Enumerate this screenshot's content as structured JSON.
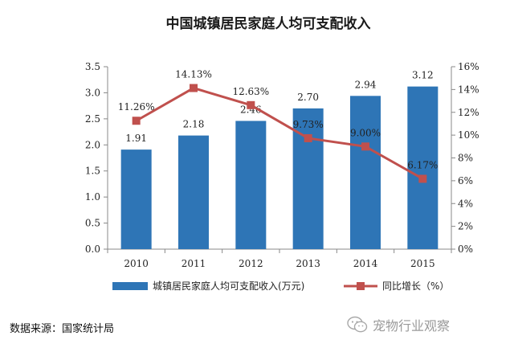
{
  "chart_data": {
    "type": "bar",
    "title": "中国城镇居民家庭人均可支配收入",
    "categories": [
      "2010",
      "2011",
      "2012",
      "2013",
      "2014",
      "2015"
    ],
    "series": [
      {
        "name": "城镇居民家庭人均可支配收入(万元)",
        "type": "bar",
        "axis": "left",
        "values": [
          1.91,
          2.18,
          2.46,
          2.7,
          2.94,
          3.12
        ],
        "labels": [
          "1.91",
          "2.18",
          "2.46",
          "2.70",
          "2.94",
          "3.12"
        ],
        "color": "#2E75B6"
      },
      {
        "name": "同比增长（%）",
        "type": "line",
        "axis": "right",
        "values": [
          11.26,
          14.13,
          12.63,
          9.73,
          9.0,
          6.17
        ],
        "labels": [
          "11.26%",
          "14.13%",
          "12.63%",
          "9.73%",
          "9.00%",
          "6.17%"
        ],
        "color": "#C0504D"
      }
    ],
    "y_left": {
      "range": [
        0,
        3.5
      ],
      "ticks": [
        "0.0",
        "0.5",
        "1.0",
        "1.5",
        "2.0",
        "2.5",
        "3.0",
        "3.5"
      ]
    },
    "y_right": {
      "range": [
        0,
        16
      ],
      "ticks": [
        "0%",
        "2%",
        "4%",
        "6%",
        "8%",
        "10%",
        "12%",
        "14%",
        "16%"
      ]
    },
    "grid": false,
    "legend_position": "bottom"
  },
  "source": "数据来源：国家统计局",
  "watermark": {
    "text": "宠物行业观察",
    "icon": "wechat-icon"
  }
}
